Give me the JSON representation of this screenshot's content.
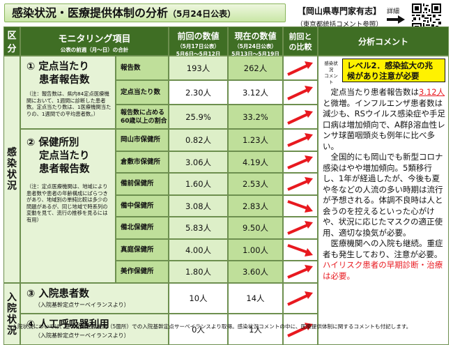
{
  "header": {
    "title": "感染状況・医療提供体制の分析",
    "date": "（5月24日公表）",
    "org": "【岡山県専門家有志】",
    "org_note": "（東京都統括コメント参照）",
    "detail_label": "詳細"
  },
  "table_header": {
    "division": "区分",
    "monitoring": "モニタリング項目",
    "monitoring_sub": "公表の前週（月～日）の合計",
    "prev": "前回の数値",
    "prev_sub1": "（5月17日公表）",
    "prev_sub2": "5月6日～5月12日",
    "cur": "現在の数値",
    "cur_sub1": "（5月24日公表）",
    "cur_sub2": "5月13日～5月19日",
    "compare1": "前回と",
    "compare2": "の比較",
    "comment": "分析コメント"
  },
  "categories": {
    "infection": "感染状況",
    "hospital": "入院状況"
  },
  "items": {
    "item1_title1": "① 定点当たり",
    "item1_title2": "患者報告数",
    "item1_note": "（注：報告数は、県内84定点医療機関において、1週間に診断した患者数。定点当たり数は、1医療機関当たりの、1週間での平均患者数。）",
    "item2_title1": "② 保健所別",
    "item2_title2": "定点当たり",
    "item2_title3": "患者報告数",
    "item2_note": "（注：定点医療機関は、地域により患者数や患者の年齢構成にばらつきがあり、地域別の単純比較は多少の問題があるが、同じ地域で時系列の変動を見て、流行の推移を見るには有用）",
    "item3_title": "③ 入院患者数",
    "item3_note": "（入院基幹定点サーベイランスより）",
    "item4_title": "④ 人工呼吸器利用",
    "item4_note": "（入院基幹定点サーベイランスより）"
  },
  "rows": {
    "r1": {
      "label": "報告数",
      "prev": "193人",
      "cur": "262人"
    },
    "r2": {
      "label": "定点当たり数",
      "prev": "2.30人",
      "cur": "3.12人"
    },
    "r3": {
      "label1": "報告数に占める",
      "label2": "60歳以上の割合",
      "prev": "25.9%",
      "cur": "33.2%"
    },
    "r4": {
      "label": "岡山市保健所",
      "prev": "0.82人",
      "cur": "1.23人"
    },
    "r5": {
      "label": "倉敷市保健所",
      "prev": "3.06人",
      "cur": "4.19人"
    },
    "r6": {
      "label": "備前保健所",
      "prev": "1.60人",
      "cur": "2.53人"
    },
    "r7": {
      "label": "備中保健所",
      "prev": "3.08人",
      "cur": "2.83人"
    },
    "r8": {
      "label": "備北保健所",
      "prev": "5.83人",
      "cur": "9.50人"
    },
    "r9": {
      "label": "真庭保健所",
      "prev": "4.00人",
      "cur": "1.00人"
    },
    "r10": {
      "label": "美作保健所",
      "prev": "1.80人",
      "cur": "3.60人"
    },
    "r11": {
      "prev": "10人",
      "cur": "14人"
    },
    "r12": {
      "prev": "0人",
      "cur": "1人"
    }
  },
  "comment": {
    "status_label1": "感染状況",
    "status_label2": "コメント",
    "level_line1": "レベル2．感染拡大の兆",
    "level_line2": "候があり注意が必要",
    "p1_a": "定点当たり患者報告数は",
    "p1_b": "3.12人",
    "p1_c": "と微増。インフルエンザ患者数は減少も、RSウイルス感染症や手足口病は増加傾向で、A群β溶血性レンサ球菌咽頭炎も例年に比べ多い。",
    "p2": "全国的にも岡山でも新型コロナ感染はやや増加傾向。5類移行し、1年が経過したが、今後も夏や冬などの人流の多い時期は流行が予想される。体調不良時は人と会うのを控えるといった心がけや、状況に応じたマスクの適正使用、適切な換気が必要。",
    "p3_a": "医療機関への入院も継続。重症者も発生しており、注意が必要。",
    "p3_b": "ハイリスク患者の早期診断・治療は必要。"
  },
  "footnote": "＊入院状況については、基幹定点医療機関（5箇所）での入院基幹定点サーベイランスより取得。感染状況コメントの中に、医療提供体制に関するコメントも付記します。",
  "colors": {
    "arrow": "#e8191f",
    "accent": "#3f6e24",
    "level_bg": "#fff200"
  }
}
